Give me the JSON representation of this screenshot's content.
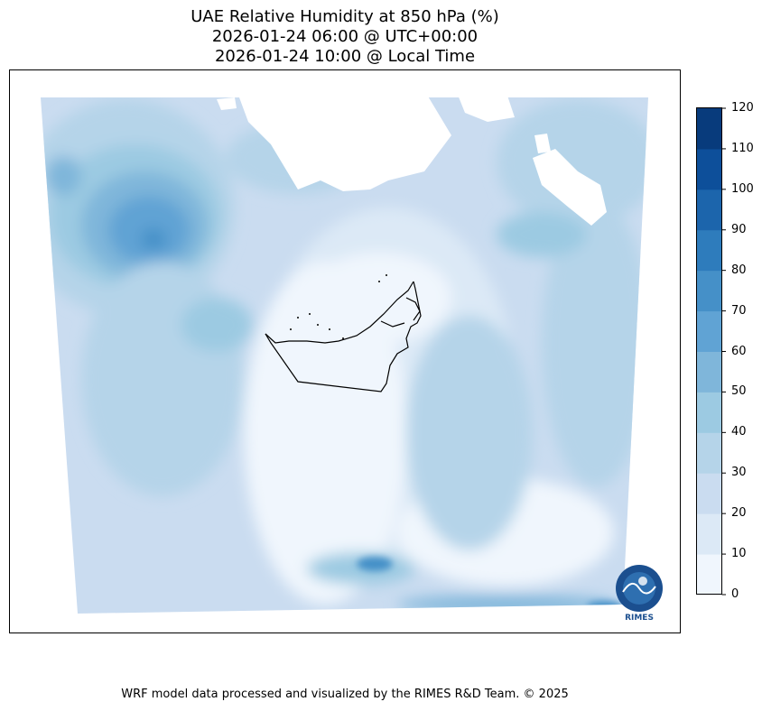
{
  "title": {
    "line1": "UAE Relative Humidity at 850 hPa (%)",
    "line2": "2026-01-24 06:00 @ UTC+00:00",
    "line3": "2026-01-24 10:00 @ Local Time"
  },
  "colorbar": {
    "ticks": [
      "0",
      "10",
      "20",
      "30",
      "40",
      "50",
      "60",
      "70",
      "80",
      "90",
      "100",
      "110",
      "120"
    ],
    "colors": [
      "#f0f6fd",
      "#dce9f6",
      "#cadcf0",
      "#b5d4e9",
      "#9ccae2",
      "#7fb6da",
      "#60a3d4",
      "#4590c8",
      "#2e7cbc",
      "#1c65ac",
      "#0d4f9a",
      "#083b7c"
    ]
  },
  "map": {
    "region": "UAE",
    "logo_text": "RIMES"
  },
  "footer": "WRF model data processed and visualized by the RIMES R&D Team. © 2025"
}
